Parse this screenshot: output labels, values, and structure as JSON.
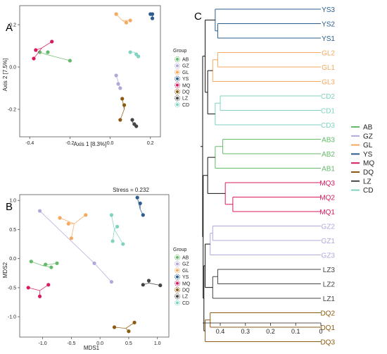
{
  "panel_labels": [
    "A",
    "B",
    "C"
  ],
  "colors": {
    "AB": "#66bb6a",
    "GZ": "#b3a7d9",
    "GL": "#f5a95f",
    "YS": "#2b5d8f",
    "MQ": "#d81b60",
    "DQ": "#8d5a12",
    "LZ": "#444444",
    "CD": "#7fd3c0"
  },
  "chart_data": [
    {
      "type": "scatter",
      "panel": "A",
      "xlabel": "Axis 1 [8.3%]",
      "ylabel": "Axis 2 [7.5%]",
      "xlim": [
        -0.45,
        0.25
      ],
      "ylim": [
        -0.33,
        0.29
      ],
      "xticks": [
        -0.4,
        -0.2,
        0.0,
        0.2
      ],
      "yticks": [
        -0.2,
        0.0,
        0.2
      ],
      "grid": false,
      "legend": {
        "title": "Group",
        "placement": "right",
        "entries": [
          "AB",
          "GZ",
          "GL",
          "YS",
          "MQ",
          "DQ",
          "LZ",
          "CD"
        ]
      },
      "series": [
        {
          "name": "AB",
          "centroid": [
            -0.32,
            0.06
          ],
          "points": [
            [
              -0.35,
              0.07
            ],
            [
              -0.31,
              0.07
            ],
            [
              -0.2,
              0.03
            ]
          ]
        },
        {
          "name": "GZ",
          "centroid": [
            0.04,
            -0.07
          ],
          "points": [
            [
              0.03,
              -0.04
            ],
            [
              0.04,
              -0.08
            ],
            [
              0.05,
              -0.1
            ]
          ]
        },
        {
          "name": "GL",
          "centroid": [
            0.06,
            0.22
          ],
          "points": [
            [
              0.03,
              0.25
            ],
            [
              0.08,
              0.21
            ],
            [
              0.1,
              0.22
            ]
          ]
        },
        {
          "name": "YS",
          "centroid": [
            0.21,
            0.24
          ],
          "points": [
            [
              0.2,
              0.25
            ],
            [
              0.21,
              0.25
            ],
            [
              0.21,
              0.23
            ]
          ]
        },
        {
          "name": "MQ",
          "centroid": [
            -0.34,
            0.09
          ],
          "points": [
            [
              -0.38,
              0.04
            ],
            [
              -0.37,
              0.08
            ],
            [
              -0.29,
              0.12
            ]
          ]
        },
        {
          "name": "DQ",
          "centroid": [
            0.07,
            -0.2
          ],
          "points": [
            [
              0.06,
              -0.15
            ],
            [
              0.07,
              -0.18
            ],
            [
              0.05,
              -0.25
            ]
          ]
        },
        {
          "name": "LZ",
          "centroid": [
            0.11,
            -0.26
          ],
          "points": [
            [
              0.11,
              -0.25
            ],
            [
              0.12,
              -0.27
            ],
            [
              0.13,
              -0.28
            ]
          ]
        },
        {
          "name": "CD",
          "centroid": [
            0.12,
            0.07
          ],
          "points": [
            [
              0.1,
              0.07
            ],
            [
              0.13,
              0.06
            ],
            [
              0.14,
              0.05
            ]
          ]
        }
      ]
    },
    {
      "type": "scatter",
      "panel": "B",
      "title": "Stress = 0.232",
      "xlabel": "MDS1",
      "ylabel": "MDS2",
      "xlim": [
        -1.4,
        1.2
      ],
      "ylim": [
        -1.35,
        1.1
      ],
      "xticks": [
        -1.0,
        -0.5,
        0.0,
        0.5,
        1.0
      ],
      "yticks": [
        -1.0,
        -0.5,
        0.0,
        0.5,
        1.0
      ],
      "grid": false,
      "legend": {
        "title": "Group",
        "placement": "right",
        "entries": [
          "AB",
          "GZ",
          "GL",
          "YS",
          "MQ",
          "DQ",
          "LZ",
          "CD"
        ]
      },
      "series": [
        {
          "name": "AB",
          "centroid": [
            -1.0,
            -0.12
          ],
          "points": [
            [
              -1.2,
              -0.05
            ],
            [
              -0.95,
              -0.1
            ],
            [
              -0.85,
              -0.15
            ],
            [
              -0.75,
              -0.08
            ]
          ]
        },
        {
          "name": "GZ",
          "centroid": [
            -0.1,
            -0.08
          ],
          "points": [
            [
              -1.05,
              0.82
            ],
            [
              -0.1,
              -0.08
            ],
            [
              0.2,
              -0.4
            ]
          ]
        },
        {
          "name": "GL",
          "centroid": [
            -0.45,
            0.6
          ],
          "points": [
            [
              -0.7,
              0.7
            ],
            [
              -0.55,
              0.6
            ],
            [
              -0.5,
              0.35
            ],
            [
              -0.25,
              0.75
            ]
          ]
        },
        {
          "name": "YS",
          "centroid": [
            0.7,
            0.85
          ],
          "points": [
            [
              0.65,
              1.05
            ],
            [
              0.7,
              0.95
            ],
            [
              0.75,
              0.75
            ]
          ]
        },
        {
          "name": "MQ",
          "centroid": [
            -1.05,
            -0.55
          ],
          "points": [
            [
              -1.25,
              -0.5
            ],
            [
              -1.05,
              -0.65
            ],
            [
              -0.9,
              -0.45
            ]
          ]
        },
        {
          "name": "DQ",
          "centroid": [
            0.45,
            -1.2
          ],
          "points": [
            [
              0.25,
              -1.18
            ],
            [
              0.5,
              -1.25
            ],
            [
              0.6,
              -1.1
            ]
          ]
        },
        {
          "name": "LZ",
          "centroid": [
            0.85,
            -0.42
          ],
          "points": [
            [
              0.75,
              -0.45
            ],
            [
              0.85,
              -0.38
            ],
            [
              1.05,
              -0.46
            ]
          ]
        },
        {
          "name": "CD",
          "centroid": [
            0.25,
            0.5
          ],
          "points": [
            [
              0.2,
              0.75
            ],
            [
              0.3,
              0.55
            ],
            [
              0.22,
              0.3
            ],
            [
              0.4,
              0.25
            ]
          ]
        }
      ]
    },
    {
      "type": "dendrogram",
      "panel": "C",
      "xlim": [
        0.47,
        0
      ],
      "xticks": [
        0.4,
        0.3,
        0.2,
        0.1,
        0
      ],
      "legend": {
        "placement": "right",
        "entries": [
          "AB",
          "GZ",
          "GL",
          "YS",
          "MQ",
          "DQ",
          "LZ",
          "CD"
        ]
      },
      "leaves": [
        {
          "label": "YS3",
          "group": "YS"
        },
        {
          "label": "YS2",
          "group": "YS"
        },
        {
          "label": "YS1",
          "group": "YS"
        },
        {
          "label": "GL2",
          "group": "GL"
        },
        {
          "label": "GL1",
          "group": "GL"
        },
        {
          "label": "GL3",
          "group": "GL"
        },
        {
          "label": "CD2",
          "group": "CD"
        },
        {
          "label": "CD1",
          "group": "CD"
        },
        {
          "label": "CD3",
          "group": "CD"
        },
        {
          "label": "AB3",
          "group": "AB"
        },
        {
          "label": "AB2",
          "group": "AB"
        },
        {
          "label": "AB1",
          "group": "AB"
        },
        {
          "label": "MQ3",
          "group": "MQ"
        },
        {
          "label": "MQ2",
          "group": "MQ"
        },
        {
          "label": "MQ1",
          "group": "MQ"
        },
        {
          "label": "GZ2",
          "group": "GZ"
        },
        {
          "label": "GZ1",
          "group": "GZ"
        },
        {
          "label": "GZ3",
          "group": "GZ"
        },
        {
          "label": "LZ3",
          "group": "LZ"
        },
        {
          "label": "LZ2",
          "group": "LZ"
        },
        {
          "label": "LZ1",
          "group": "LZ"
        },
        {
          "label": "DQ2",
          "group": "DQ"
        },
        {
          "label": "DQ1",
          "group": "DQ"
        },
        {
          "label": "DQ3",
          "group": "DQ"
        }
      ],
      "merges": [
        {
          "a": "YS2",
          "b": "YS1",
          "height": 0.41
        },
        {
          "a": "YS3",
          "b": 0,
          "height": 0.42
        },
        {
          "a": "GL2",
          "b": "GL1",
          "height": 0.41
        },
        {
          "a": "GL3",
          "b": 2,
          "height": 0.43
        },
        {
          "a": "CD2",
          "b": "CD1",
          "height": 0.4
        },
        {
          "a": "CD3",
          "b": 4,
          "height": 0.42
        },
        {
          "a": 3,
          "b": 5,
          "height": 0.45
        },
        {
          "a": 1,
          "b": 6,
          "height": 0.46
        },
        {
          "a": "AB3",
          "b": "AB2",
          "height": 0.39
        },
        {
          "a": 8,
          "b": "AB1",
          "height": 0.42
        },
        {
          "a": "MQ2",
          "b": "MQ1",
          "height": 0.35
        },
        {
          "a": "MQ3",
          "b": 10,
          "height": 0.38
        },
        {
          "a": 9,
          "b": 11,
          "height": 0.45
        },
        {
          "a": "GZ2",
          "b": "GZ1",
          "height": 0.43
        },
        {
          "a": 13,
          "b": "GZ3",
          "height": 0.44
        },
        {
          "a": "LZ3",
          "b": "LZ2",
          "height": 0.41
        },
        {
          "a": 15,
          "b": "LZ1",
          "height": 0.43
        },
        {
          "a": 14,
          "b": 16,
          "height": 0.46
        },
        {
          "a": "DQ2",
          "b": "DQ1",
          "height": 0.44
        },
        {
          "a": 18,
          "b": "DQ3",
          "height": 0.46
        },
        {
          "a": 17,
          "b": 19,
          "height": 0.465
        },
        {
          "a": 12,
          "b": 20,
          "height": 0.468
        },
        {
          "a": 7,
          "b": 21,
          "height": 0.47
        }
      ]
    }
  ]
}
